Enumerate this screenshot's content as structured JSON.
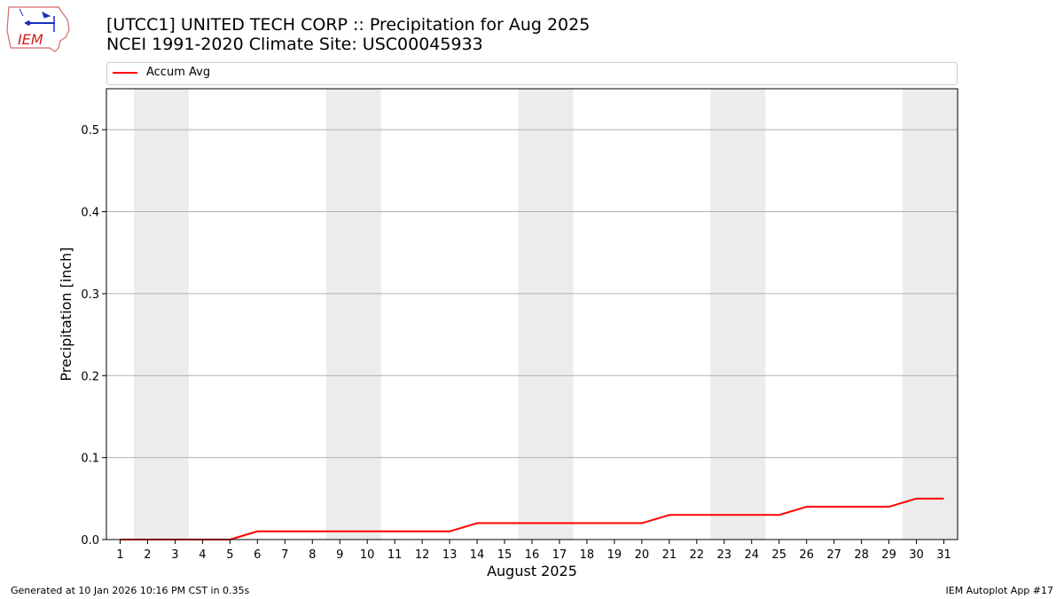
{
  "header": {
    "title_line1": "[UTCC1] UNITED TECH CORP :: Precipitation for Aug 2025",
    "title_line2": "NCEI 1991-2020 Climate Site: USC00045933"
  },
  "logo": {
    "text": "IEM"
  },
  "legend": {
    "entries": [
      "Accum Avg"
    ]
  },
  "footer": {
    "generated": "Generated at 10 Jan 2026 10:16 PM CST in 0.35s",
    "app": "IEM Autoplot App #17"
  },
  "colors": {
    "line": "#ff0000",
    "weekend_shade": "#ececec",
    "grid": "#b0b0b0"
  },
  "chart_data": {
    "type": "line",
    "title": "[UTCC1] UNITED TECH CORP :: Precipitation for Aug 2025",
    "subtitle": "NCEI 1991-2020 Climate Site: USC00045933",
    "xlabel": "August 2025",
    "ylabel": "Precipitation [inch]",
    "x": [
      1,
      2,
      3,
      4,
      5,
      6,
      7,
      8,
      9,
      10,
      11,
      12,
      13,
      14,
      15,
      16,
      17,
      18,
      19,
      20,
      21,
      22,
      23,
      24,
      25,
      26,
      27,
      28,
      29,
      30,
      31
    ],
    "x_ticks": [
      "1",
      "2",
      "3",
      "4",
      "5",
      "6",
      "7",
      "8",
      "9",
      "10",
      "11",
      "12",
      "13",
      "14",
      "15",
      "16",
      "17",
      "18",
      "19",
      "20",
      "21",
      "22",
      "23",
      "24",
      "25",
      "26",
      "27",
      "28",
      "29",
      "30",
      "31"
    ],
    "xlim": [
      0.5,
      31.5
    ],
    "ylim": [
      0,
      0.55
    ],
    "y_ticks": [
      "0.0",
      "0.1",
      "0.2",
      "0.3",
      "0.4",
      "0.5"
    ],
    "y_tick_values": [
      0,
      0.1,
      0.2,
      0.3,
      0.4,
      0.5
    ],
    "grid": "horizontal",
    "legend_placement": "top",
    "shaded_weekend_days": [
      [
        2,
        3
      ],
      [
        9,
        10
      ],
      [
        16,
        17
      ],
      [
        23,
        24
      ],
      [
        30,
        31
      ]
    ],
    "series": [
      {
        "name": "Accum Avg",
        "color": "#ff0000",
        "values": [
          0.0,
          0.0,
          0.0,
          0.0,
          0.0,
          0.01,
          0.01,
          0.01,
          0.01,
          0.01,
          0.01,
          0.01,
          0.01,
          0.02,
          0.02,
          0.02,
          0.02,
          0.02,
          0.02,
          0.02,
          0.03,
          0.03,
          0.03,
          0.03,
          0.03,
          0.04,
          0.04,
          0.04,
          0.04,
          0.05,
          0.05
        ]
      }
    ]
  }
}
